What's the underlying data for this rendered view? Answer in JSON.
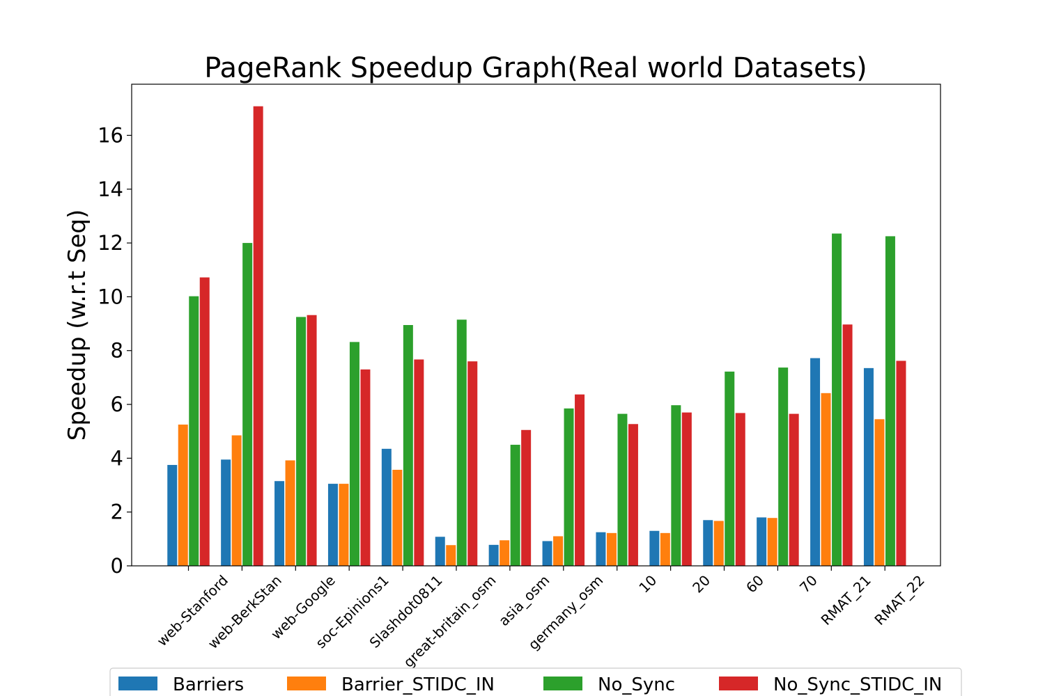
{
  "chart_data": {
    "type": "bar",
    "title": "PageRank Speedup Graph(Real world Datasets)",
    "xlabel": "",
    "ylabel": "Speedup (w.r.t Seq)",
    "ylim": [
      0,
      17.9
    ],
    "yticks": [
      0,
      2,
      4,
      6,
      8,
      10,
      12,
      14,
      16
    ],
    "grid": false,
    "legend_position": "bottom",
    "categories": [
      "web-Stanford",
      "web-BerkStan",
      "web-Google",
      "soc-Epinions1",
      "Slashdot0811",
      "great-britain_osm",
      "asia_osm",
      "germany_osm",
      "10",
      "20",
      "60",
      "70",
      "RMAT_21",
      "RMAT_22"
    ],
    "series": [
      {
        "name": "Barriers",
        "color": "#1f77b4",
        "values": [
          3.75,
          3.95,
          3.15,
          3.05,
          4.35,
          1.08,
          0.78,
          0.92,
          1.25,
          1.3,
          1.7,
          1.8,
          7.72,
          7.35
        ]
      },
      {
        "name": "Barrier_STIDC_IN",
        "color": "#ff7f0e",
        "values": [
          5.25,
          4.85,
          3.92,
          3.05,
          3.57,
          0.77,
          0.95,
          1.1,
          1.22,
          1.22,
          1.67,
          1.78,
          6.42,
          5.45
        ]
      },
      {
        "name": "No_Sync",
        "color": "#2ca02c",
        "values": [
          10.02,
          12.0,
          9.25,
          8.32,
          8.95,
          9.15,
          4.5,
          5.85,
          5.65,
          5.97,
          7.22,
          7.37,
          12.35,
          12.25
        ]
      },
      {
        "name": "No_Sync_STIDC_IN",
        "color": "#d62728",
        "values": [
          10.72,
          17.08,
          9.32,
          7.3,
          7.67,
          7.6,
          5.05,
          6.37,
          5.27,
          5.7,
          5.68,
          5.65,
          8.97,
          7.62
        ]
      }
    ]
  }
}
